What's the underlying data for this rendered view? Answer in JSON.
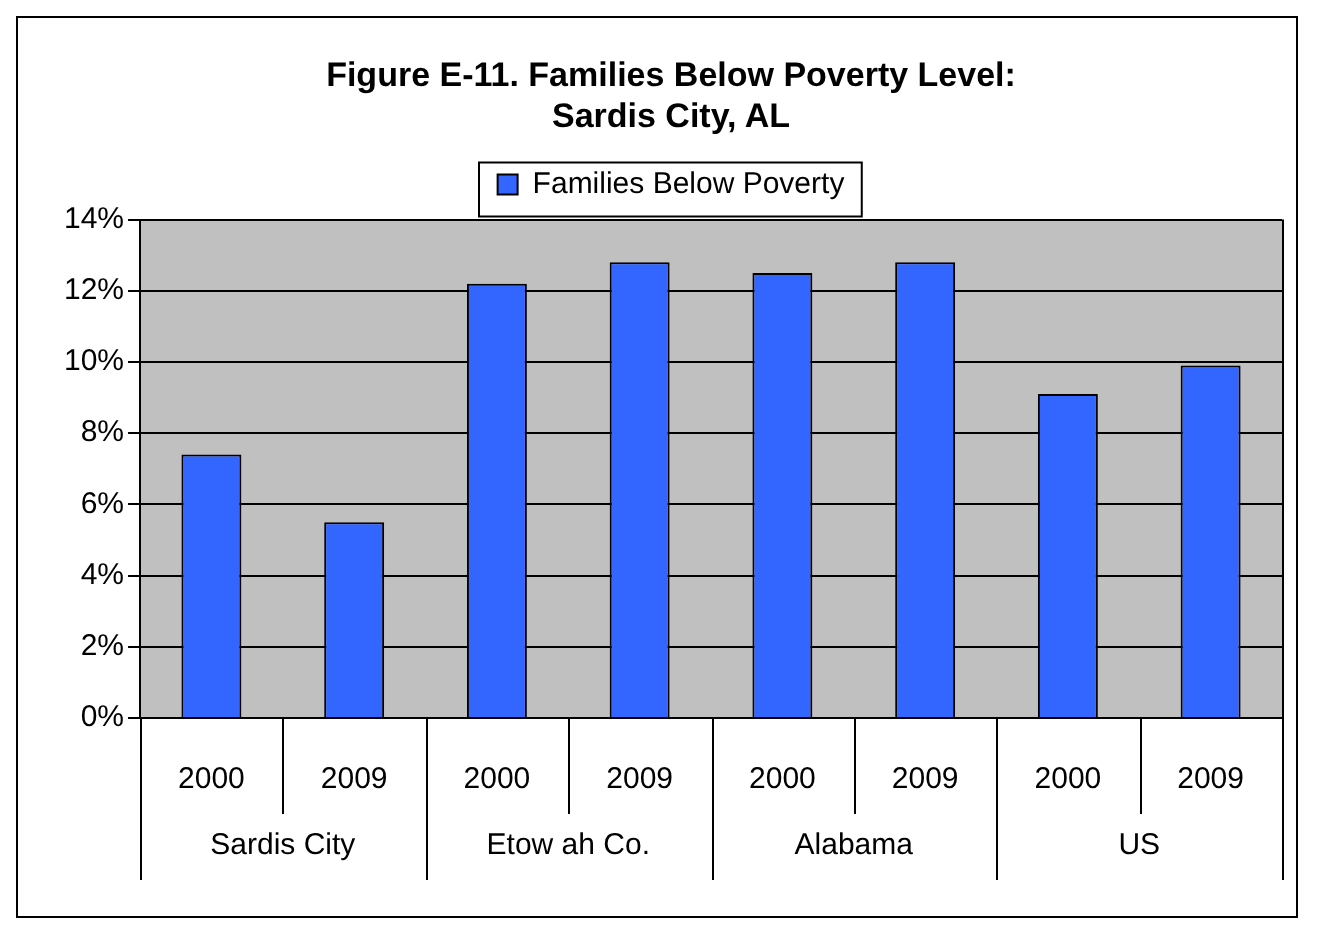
{
  "chart_data": {
    "type": "bar",
    "title": "Figure E-11. Families Below Poverty Level: Sardis City, AL",
    "categories": [
      "2000",
      "2009",
      "2000",
      "2009",
      "2000",
      "2009",
      "2000",
      "2009"
    ],
    "annotations": [
      "Sardis City",
      "Etow ah Co.",
      "Alabama",
      "US"
    ],
    "series": [
      {
        "name": "Families Below Poverty",
        "color": "#3366ff",
        "values": [
          7.4,
          5.5,
          12.2,
          12.8,
          12.5,
          12.8,
          9.1,
          9.9
        ]
      }
    ],
    "ylim": [
      0,
      14
    ],
    "yticks": [
      {
        "value": 0,
        "label": "0%"
      },
      {
        "value": 2,
        "label": "2%"
      },
      {
        "value": 4,
        "label": "4%"
      },
      {
        "value": 6,
        "label": "6%"
      },
      {
        "value": 8,
        "label": "8%"
      },
      {
        "value": 10,
        "label": "10%"
      },
      {
        "value": 12,
        "label": "12%"
      },
      {
        "value": 14,
        "label": "14%"
      }
    ],
    "grid": "y",
    "legend": "top"
  }
}
